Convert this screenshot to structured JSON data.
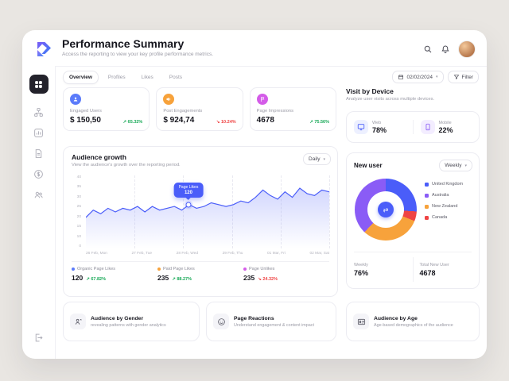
{
  "colors": {
    "accent_blue": "#4a5df9",
    "orange": "#f7a23b",
    "magenta": "#d45ce8",
    "purple": "#8a5cf6",
    "green": "#18a957",
    "red": "#ef4444"
  },
  "header": {
    "title": "Performance Summary",
    "subtitle": "Access the reporting to view your key profile performance metrics."
  },
  "sidebar": {
    "icons": [
      "grid-icon",
      "hierarchy-icon",
      "chart-icon",
      "document-icon",
      "coin-icon",
      "users-icon",
      "signout-icon"
    ]
  },
  "tabs": [
    {
      "label": "Overview",
      "active": true
    },
    {
      "label": "Profiles",
      "active": false
    },
    {
      "label": "Likes",
      "active": false
    },
    {
      "label": "Posts",
      "active": false
    }
  ],
  "toolbar": {
    "date": "02/02/2024",
    "filter_label": "Filter"
  },
  "stat_cards": [
    {
      "label": "Engaged Users",
      "value": "$ 150,50",
      "delta": "65.32%",
      "trend": "up",
      "icon": "user-icon",
      "color": "#5b7bfa"
    },
    {
      "label": "Post Engagements",
      "value": "$ 924,74",
      "delta": "10.24%",
      "trend": "down",
      "icon": "megaphone-icon",
      "color": "#f7a23b"
    },
    {
      "label": "Page Impressions",
      "value": "4678",
      "delta": "75.56%",
      "trend": "up",
      "icon": "flag-icon",
      "color": "#d45ce8"
    }
  ],
  "audience_growth": {
    "title": "Audience growth",
    "subtitle": "View the audience's growth over the reporting period.",
    "range_label": "Daily",
    "tooltip": {
      "label": "Page Likes",
      "value": "120"
    },
    "chart_data": {
      "type": "area",
      "title": "Audience growth",
      "x_labels": [
        "26 Feb, Mon",
        "27 Feb, Tue",
        "28 Feb, Wed",
        "29 Feb, Thu",
        "01 Mar, Fri",
        "02 Mar, Sat"
      ],
      "yticks": [
        40,
        35,
        30,
        25,
        20,
        15,
        10,
        0
      ],
      "ylim": [
        0,
        40
      ],
      "values": [
        17,
        21,
        19,
        22,
        20,
        22,
        21,
        23,
        20,
        23,
        21,
        22,
        23,
        21,
        24,
        22,
        23,
        25,
        24,
        23,
        24,
        26,
        25,
        28,
        32,
        29,
        27,
        31,
        28,
        33,
        30,
        29,
        32,
        31
      ],
      "tooltip_index": 14,
      "line_color": "#4a5df9"
    },
    "footer_stats": [
      {
        "label": "Organic Page Likes",
        "value": "120",
        "delta": "67.82%",
        "trend": "up",
        "color": "#5b7bfa"
      },
      {
        "label": "Paid Page Likes",
        "value": "235",
        "delta": "88.27%",
        "trend": "up",
        "color": "#f7a23b"
      },
      {
        "label": "Page Unlikes",
        "value": "235",
        "delta": "24.32%",
        "trend": "down",
        "color": "#d45ce8"
      }
    ]
  },
  "visit_by_device": {
    "title": "Visit by Device",
    "subtitle": "Analyze user visits across multiple devices.",
    "devices": [
      {
        "label": "Web",
        "value": "78%",
        "icon": "monitor-icon",
        "color": "#4a5df9",
        "bg": "#edf0ff"
      },
      {
        "label": "Mobile",
        "value": "22%",
        "icon": "phone-icon",
        "color": "#8a5cf6",
        "bg": "#f3edff"
      }
    ]
  },
  "new_user": {
    "title": "New user",
    "range_label": "Weekly",
    "chart_data": {
      "type": "pie",
      "segments": [
        {
          "label": "United Kingdom",
          "color": "#4a5df9",
          "value": 26
        },
        {
          "label": "Canada",
          "color": "#ef4444",
          "value": 5
        },
        {
          "label": "New Zealand",
          "color": "#f7a23b",
          "value": 31
        },
        {
          "label": "Australia",
          "color": "#8a5cf6",
          "value": 38
        }
      ],
      "legend_order": [
        "United Kingdom",
        "Australia",
        "New Zealand",
        "Canada"
      ]
    },
    "weekly_label": "Weekly",
    "weekly_value": "76%",
    "total_label": "Total New User",
    "total_value": "4678"
  },
  "bottom_cards": [
    {
      "title": "Audience by Gender",
      "subtitle": "revealing patterns with gender analytics",
      "icon": "gender-icon"
    },
    {
      "title": "Page Reactions",
      "subtitle": "Understand engagement & content impact",
      "icon": "smiley-icon"
    },
    {
      "title": "Audience by Age",
      "subtitle": "Age-based demographics of the audience",
      "icon": "id-card-icon"
    }
  ]
}
